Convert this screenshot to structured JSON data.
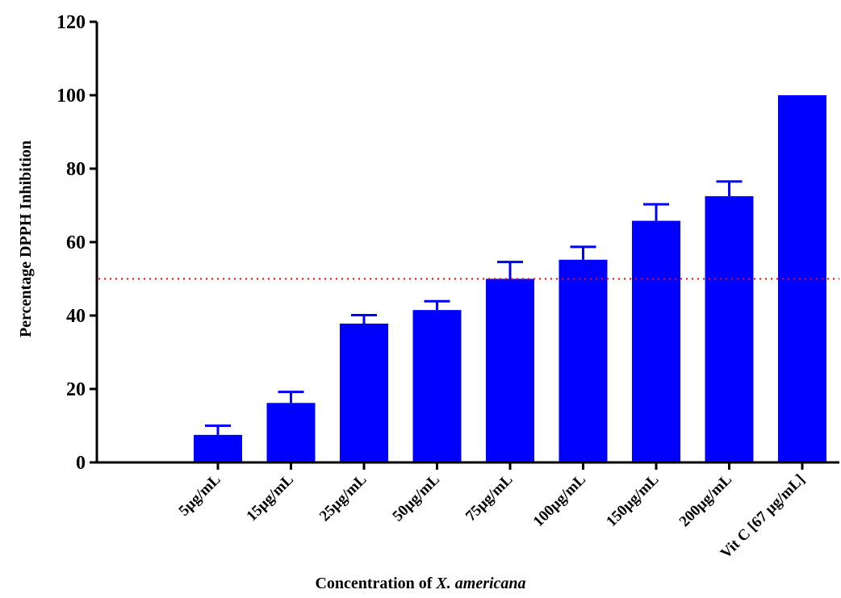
{
  "chart_data": {
    "type": "bar",
    "categories": [
      "5µg/mL",
      "15µg/mL",
      "25µg/mL",
      "50µg/mL",
      "75µg/mL",
      "100µg/mL",
      "150µg/mL",
      "200µg/mL",
      "Vit C [67 µg/mL]"
    ],
    "values": [
      7.5,
      16.2,
      37.8,
      41.5,
      50.0,
      55.2,
      65.8,
      72.5,
      100.0
    ],
    "errors": [
      2.5,
      3.0,
      2.3,
      2.4,
      4.6,
      3.5,
      4.5,
      4.0,
      0
    ],
    "ylabel": "Percentage DPPH Inhibition",
    "xlabel_prefix": "Concentration of ",
    "xlabel_italic": "X. americana",
    "ylim": [
      0,
      120
    ],
    "yticks": [
      "0",
      "20",
      "40",
      "60",
      "80",
      "100",
      "120"
    ],
    "reference_line": {
      "value": 50,
      "style": "dotted",
      "color": "#ff0000"
    },
    "bar_color": "#0000ff",
    "grid": false
  }
}
